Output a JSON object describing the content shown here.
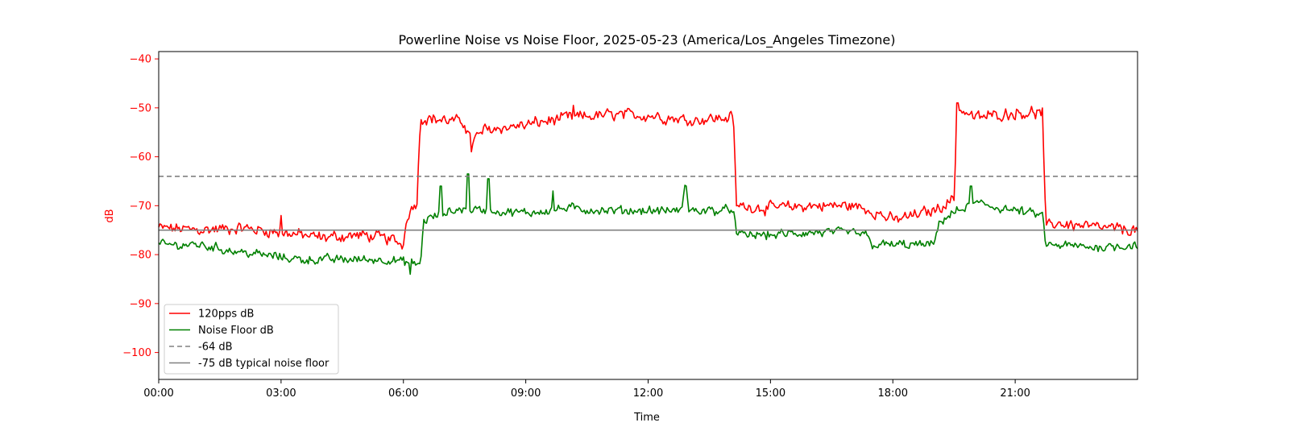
{
  "chart_data": {
    "type": "line",
    "title": "Powerline Noise vs Noise Floor, 2025-05-23 (America/Los_Angeles Timezone)",
    "xlabel": "Time",
    "ylabel": "dB",
    "ylabel_color": "#ff0000",
    "xlim": [
      "00:00",
      "24:00"
    ],
    "ylim": [
      -105.5,
      -38.5
    ],
    "x_ticks": [
      "00:00",
      "03:00",
      "06:00",
      "09:00",
      "12:00",
      "15:00",
      "18:00",
      "21:00"
    ],
    "y_ticks": [
      -40,
      -50,
      -60,
      -70,
      -80,
      -90,
      -100
    ],
    "y_tick_labels": [
      "−40",
      "−50",
      "−60",
      "−70",
      "−80",
      "−90",
      "−100"
    ],
    "grid": false,
    "legend_position": "lower-left",
    "series": [
      {
        "name": "120pps dB",
        "color": "#ff0000",
        "style": "solid",
        "noise": 0.9,
        "points": [
          [
            "00:00",
            -74.5
          ],
          [
            "01:00",
            -75
          ],
          [
            "02:00",
            -74.5
          ],
          [
            "03:00",
            -75.5
          ],
          [
            "04:00",
            -76.5
          ],
          [
            "05:00",
            -76
          ],
          [
            "05:45",
            -77
          ],
          [
            "06:00",
            -78
          ],
          [
            "06:05",
            -72
          ],
          [
            "06:20",
            -69
          ],
          [
            "06:25",
            -52
          ],
          [
            "07:00",
            -52.5
          ],
          [
            "07:30",
            -53
          ],
          [
            "07:40",
            -57
          ],
          [
            "08:00",
            -54.5
          ],
          [
            "09:00",
            -53.5
          ],
          [
            "10:00",
            -52
          ],
          [
            "11:00",
            -51.5
          ],
          [
            "12:00",
            -51.5
          ],
          [
            "13:00",
            -52.5
          ],
          [
            "14:00",
            -52
          ],
          [
            "14:05",
            -51
          ],
          [
            "14:10",
            -70
          ],
          [
            "15:00",
            -70.5
          ],
          [
            "16:00",
            -70
          ],
          [
            "17:00",
            -70
          ],
          [
            "17:30",
            -71
          ],
          [
            "18:00",
            -73
          ],
          [
            "18:30",
            -72
          ],
          [
            "19:00",
            -71
          ],
          [
            "19:30",
            -68.5
          ],
          [
            "19:35",
            -50
          ],
          [
            "20:00",
            -52
          ],
          [
            "21:00",
            -51
          ],
          [
            "21:40",
            -51
          ],
          [
            "21:45",
            -74.5
          ],
          [
            "22:00",
            -73.5
          ],
          [
            "23:00",
            -74.5
          ],
          [
            "24:00",
            -75
          ]
        ]
      },
      {
        "name": "Noise Floor dB",
        "color": "#008000",
        "style": "solid",
        "noise": 0.7,
        "points": [
          [
            "00:00",
            -78
          ],
          [
            "01:00",
            -78
          ],
          [
            "02:00",
            -79.5
          ],
          [
            "02:30",
            -80
          ],
          [
            "03:00",
            -80.5
          ],
          [
            "03:30",
            -81
          ],
          [
            "05:00",
            -81
          ],
          [
            "05:40",
            -81
          ],
          [
            "06:00",
            -81.5
          ],
          [
            "06:25",
            -82
          ],
          [
            "06:30",
            -73
          ],
          [
            "07:00",
            -71.5
          ],
          [
            "07:30",
            -70.5
          ],
          [
            "08:00",
            -71
          ],
          [
            "09:00",
            -71.5
          ],
          [
            "10:00",
            -70.5
          ],
          [
            "11:00",
            -71
          ],
          [
            "12:00",
            -71
          ],
          [
            "12:50",
            -71
          ],
          [
            "12:55",
            -64
          ],
          [
            "13:00",
            -71
          ],
          [
            "14:00",
            -71
          ],
          [
            "14:05",
            -70
          ],
          [
            "14:10",
            -76
          ],
          [
            "15:00",
            -76
          ],
          [
            "16:00",
            -75.5
          ],
          [
            "17:00",
            -75.5
          ],
          [
            "17:20",
            -76
          ],
          [
            "17:30",
            -78
          ],
          [
            "18:30",
            -78
          ],
          [
            "19:00",
            -78
          ],
          [
            "19:10",
            -73
          ],
          [
            "19:30",
            -71.5
          ],
          [
            "20:00",
            -69.5
          ],
          [
            "21:00",
            -71
          ],
          [
            "21:40",
            -72
          ],
          [
            "21:45",
            -78
          ],
          [
            "23:00",
            -78.5
          ],
          [
            "24:00",
            -78
          ]
        ]
      },
      {
        "name": "-64 dB",
        "color": "#808080",
        "style": "dashed",
        "noise": 0,
        "points": [
          [
            "00:00",
            -64
          ],
          [
            "24:00",
            -64
          ]
        ]
      },
      {
        "name": "-75 dB typical noise floor",
        "color": "#808080",
        "style": "solid",
        "noise": 0,
        "points": [
          [
            "00:00",
            -75
          ],
          [
            "24:00",
            -75
          ]
        ]
      }
    ],
    "spikes": [
      {
        "series": "Noise Floor dB",
        "x": "06:55",
        "y": -66
      },
      {
        "series": "Noise Floor dB",
        "x": "07:35",
        "y": -63.5
      },
      {
        "series": "Noise Floor dB",
        "x": "08:05",
        "y": -64.5
      },
      {
        "series": "Noise Floor dB",
        "x": "09:40",
        "y": -67
      },
      {
        "series": "Noise Floor dB",
        "x": "19:55",
        "y": -66
      },
      {
        "series": "Noise Floor dB",
        "x": "06:10",
        "y": -84
      },
      {
        "series": "120pps dB",
        "x": "07:40",
        "y": -59
      },
      {
        "series": "120pps dB",
        "x": "03:00",
        "y": -72
      },
      {
        "series": "120pps dB",
        "x": "10:10",
        "y": -49.5
      },
      {
        "series": "120pps dB",
        "x": "19:35",
        "y": -49
      }
    ]
  }
}
